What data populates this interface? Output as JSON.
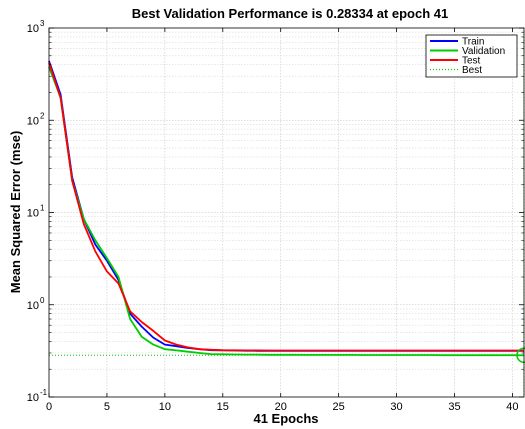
{
  "chart_data": {
    "type": "line",
    "title": "Best Validation Performance is 0.28334 at epoch 41",
    "xlabel": "41 Epochs",
    "ylabel": "Mean Squared Error  (mse)",
    "xlim": [
      0,
      41
    ],
    "ylim": [
      0.1,
      1000
    ],
    "yscale": "log",
    "grid": true,
    "legend_position": "top-right",
    "x_ticks": [
      0,
      5,
      10,
      15,
      20,
      25,
      30,
      35,
      40
    ],
    "y_ticks": [
      {
        "value": 0.1,
        "base": "10",
        "exp": "-1"
      },
      {
        "value": 1,
        "base": "10",
        "exp": "0"
      },
      {
        "value": 10,
        "base": "10",
        "exp": "1"
      },
      {
        "value": 100,
        "base": "10",
        "exp": "2"
      },
      {
        "value": 1000,
        "base": "10",
        "exp": "3"
      }
    ],
    "x": [
      0,
      1,
      2,
      3,
      4,
      5,
      6,
      7,
      8,
      9,
      10,
      11,
      12,
      13,
      14,
      15,
      16,
      17,
      18,
      19,
      20,
      21,
      22,
      23,
      24,
      25,
      26,
      27,
      28,
      29,
      30,
      31,
      32,
      33,
      34,
      35,
      36,
      37,
      38,
      39,
      40,
      41
    ],
    "series": [
      {
        "name": "Train",
        "color": "#0000ff",
        "style": "solid",
        "values": [
          440,
          190,
          24,
          8.5,
          4.5,
          3,
          1.85,
          0.8,
          0.58,
          0.44,
          0.37,
          0.355,
          0.34,
          0.33,
          0.322,
          0.32,
          0.319,
          0.318,
          0.317,
          0.317,
          0.316,
          0.316,
          0.316,
          0.316,
          0.316,
          0.316,
          0.316,
          0.316,
          0.316,
          0.316,
          0.316,
          0.316,
          0.316,
          0.316,
          0.316,
          0.316,
          0.316,
          0.316,
          0.316,
          0.316,
          0.316,
          0.316
        ]
      },
      {
        "name": "Validation",
        "color": "#00cc00",
        "style": "solid",
        "values": [
          380,
          175,
          22,
          8.5,
          5.0,
          3.2,
          2.0,
          0.7,
          0.45,
          0.37,
          0.33,
          0.32,
          0.31,
          0.3,
          0.292,
          0.29,
          0.289,
          0.288,
          0.288,
          0.287,
          0.287,
          0.287,
          0.286,
          0.286,
          0.286,
          0.286,
          0.286,
          0.285,
          0.285,
          0.285,
          0.285,
          0.285,
          0.285,
          0.285,
          0.284,
          0.284,
          0.284,
          0.284,
          0.284,
          0.284,
          0.284,
          0.28334
        ]
      },
      {
        "name": "Test",
        "color": "#ff0000",
        "style": "solid",
        "values": [
          420,
          175,
          22,
          7.5,
          3.8,
          2.3,
          1.7,
          0.85,
          0.65,
          0.52,
          0.41,
          0.37,
          0.345,
          0.33,
          0.325,
          0.322,
          0.321,
          0.32,
          0.32,
          0.319,
          0.319,
          0.319,
          0.319,
          0.319,
          0.319,
          0.319,
          0.319,
          0.319,
          0.319,
          0.319,
          0.319,
          0.319,
          0.319,
          0.319,
          0.319,
          0.319,
          0.319,
          0.319,
          0.319,
          0.319,
          0.319,
          0.319
        ]
      }
    ],
    "best": {
      "name": "Best",
      "color": "#00cc00",
      "style": "dotted",
      "epoch": 41,
      "value": 0.28334
    }
  }
}
